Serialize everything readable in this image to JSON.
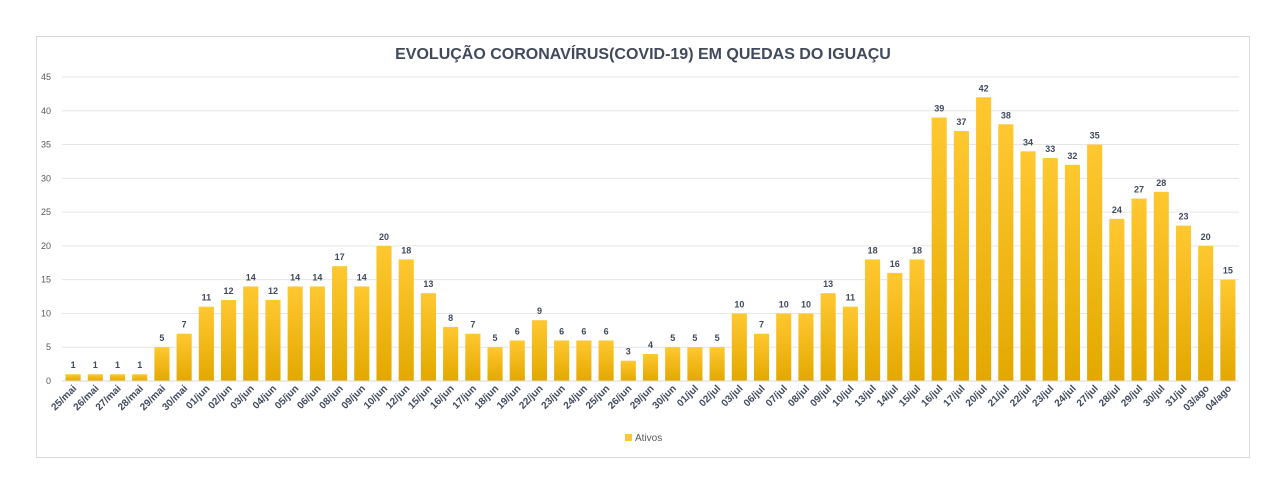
{
  "chart_data": {
    "type": "bar",
    "title": "EVOLUÇÃO CORONAVÍRUS(COVID-19) EM QUEDAS DO IGUAÇU",
    "xlabel": "",
    "ylabel": "",
    "ylim": [
      0,
      45
    ],
    "yticks": [
      0,
      5,
      10,
      15,
      20,
      25,
      30,
      35,
      40,
      45
    ],
    "grid": true,
    "legend_position": "bottom",
    "bar_color_top": "#ffc830",
    "bar_color_bottom": "#e3a800",
    "categories": [
      "25/mai",
      "26/mai",
      "27/mai",
      "28/mai",
      "29/mai",
      "30/mai",
      "01/jun",
      "02/jun",
      "03/jun",
      "04/jun",
      "05/jun",
      "06/jun",
      "08/jun",
      "09/jun",
      "10/jun",
      "12/jun",
      "15/jun",
      "16/jun",
      "17/jun",
      "18/jun",
      "19/jun",
      "22/jun",
      "23/jun",
      "24/jun",
      "25/jun",
      "26/jun",
      "29/jun",
      "30/jun",
      "01/jul",
      "02/jul",
      "03/jul",
      "06/jul",
      "07/jul",
      "08/jul",
      "09/jul",
      "10/jul",
      "13/jul",
      "14/jul",
      "15/jul",
      "16/jul",
      "17/jul",
      "20/jul",
      "21/jul",
      "22/jul",
      "23/jul",
      "24/jul",
      "27/jul",
      "28/jul",
      "29/jul",
      "30/jul",
      "31/jul",
      "03/ago",
      "04/ago"
    ],
    "series": [
      {
        "name": "Ativos",
        "values": [
          1,
          1,
          1,
          1,
          5,
          7,
          11,
          12,
          14,
          12,
          14,
          14,
          17,
          14,
          20,
          18,
          13,
          8,
          7,
          5,
          6,
          9,
          6,
          6,
          6,
          3,
          4,
          5,
          5,
          5,
          10,
          7,
          10,
          10,
          13,
          11,
          18,
          16,
          18,
          39,
          37,
          42,
          38,
          34,
          33,
          32,
          35,
          24,
          27,
          28,
          23,
          20,
          15
        ]
      }
    ]
  }
}
